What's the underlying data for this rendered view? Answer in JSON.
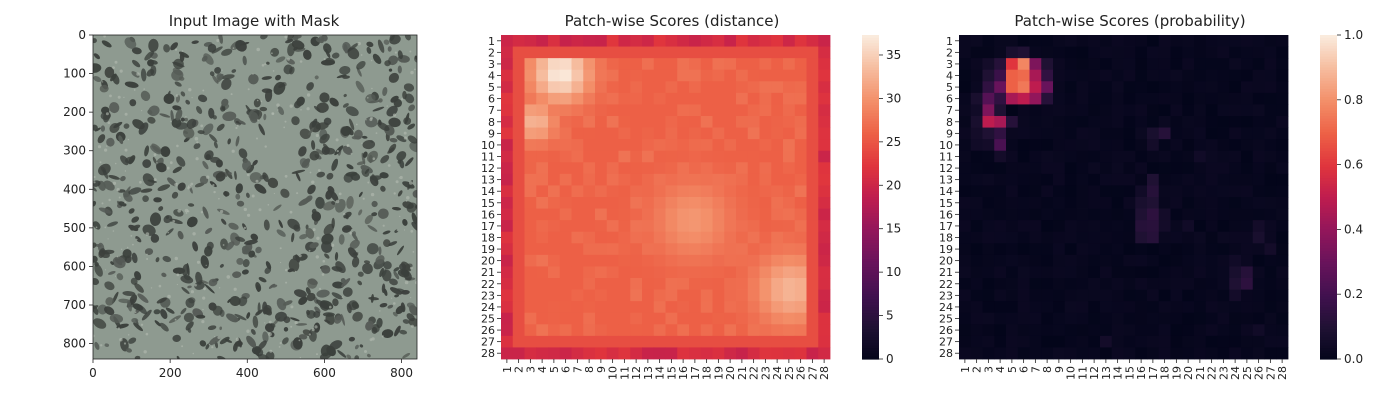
{
  "colors": {
    "background": "#ffffff",
    "texture_light": "#8e9a90",
    "texture_dark": "#3b403c",
    "rocket_low": "#03051a",
    "rocket_high": "#faebdd"
  },
  "chart_data": [
    {
      "type": "image",
      "title": "Input Image with Mask",
      "xlabel": "",
      "ylabel": "",
      "xlim": [
        0,
        840
      ],
      "ylim": [
        840,
        0
      ],
      "xticks": [
        0,
        200,
        400,
        600,
        800
      ],
      "yticks": [
        0,
        100,
        200,
        300,
        400,
        500,
        600,
        700,
        800
      ],
      "texture": "grey-green granite speckle with dark blotches"
    },
    {
      "type": "heatmap",
      "title": "Patch-wise Scores (distance)",
      "rows": 28,
      "cols": 28,
      "row_labels": [
        "1",
        "2",
        "3",
        "4",
        "5",
        "6",
        "7",
        "8",
        "9",
        "10",
        "11",
        "12",
        "13",
        "14",
        "15",
        "16",
        "17",
        "18",
        "19",
        "20",
        "21",
        "22",
        "23",
        "24",
        "25",
        "26",
        "27",
        "28"
      ],
      "col_labels": [
        "1",
        "2",
        "3",
        "4",
        "5",
        "6",
        "7",
        "8",
        "9",
        "10",
        "11",
        "12",
        "13",
        "14",
        "15",
        "16",
        "17",
        "18",
        "19",
        "20",
        "21",
        "22",
        "23",
        "24",
        "25",
        "26",
        "27",
        "28"
      ],
      "colormap": "rocket",
      "vmin": 0,
      "vmax": 37.3,
      "colorbar_ticks": [
        0,
        5,
        10,
        15,
        20,
        25,
        30,
        35
      ],
      "baseline": 26,
      "edge_value": 21,
      "hotspots": [
        {
          "row": 3.8,
          "col": 5.6,
          "peak": 37.3,
          "spread": 1.8
        },
        {
          "row": 8,
          "col": 3.4,
          "peak": 33,
          "spread": 1.3
        },
        {
          "row": 16.5,
          "col": 16.8,
          "peak": 30.5,
          "spread": 2.4
        },
        {
          "row": 22.5,
          "col": 25.2,
          "peak": 33,
          "spread": 2.2
        }
      ]
    },
    {
      "type": "heatmap",
      "title": "Patch-wise Scores (probability)",
      "rows": 28,
      "cols": 28,
      "row_labels": [
        "1",
        "2",
        "3",
        "4",
        "5",
        "6",
        "7",
        "8",
        "9",
        "10",
        "11",
        "12",
        "13",
        "14",
        "15",
        "16",
        "17",
        "18",
        "19",
        "20",
        "21",
        "22",
        "23",
        "24",
        "25",
        "26",
        "27",
        "28"
      ],
      "col_labels": [
        "1",
        "2",
        "3",
        "4",
        "5",
        "6",
        "7",
        "8",
        "9",
        "10",
        "11",
        "12",
        "13",
        "14",
        "15",
        "16",
        "17",
        "18",
        "19",
        "20",
        "21",
        "22",
        "23",
        "24",
        "25",
        "26",
        "27",
        "28"
      ],
      "colormap": "rocket",
      "vmin": 0,
      "vmax": 1,
      "colorbar_ticks": [
        0.0,
        0.2,
        0.4,
        0.6,
        0.8,
        1.0
      ],
      "colorbar_tick_labels": [
        "0.0",
        "0.2",
        "0.4",
        "0.6",
        "0.8",
        "1.0"
      ],
      "cells": [
        {
          "row": 2,
          "col": 5,
          "value": 0.08
        },
        {
          "row": 2,
          "col": 6,
          "value": 0.1
        },
        {
          "row": 3,
          "col": 3,
          "value": 0.06
        },
        {
          "row": 3,
          "col": 4,
          "value": 0.12
        },
        {
          "row": 3,
          "col": 5,
          "value": 0.6
        },
        {
          "row": 3,
          "col": 6,
          "value": 0.78
        },
        {
          "row": 3,
          "col": 7,
          "value": 0.35
        },
        {
          "row": 3,
          "col": 8,
          "value": 0.1
        },
        {
          "row": 4,
          "col": 3,
          "value": 0.1
        },
        {
          "row": 4,
          "col": 4,
          "value": 0.18
        },
        {
          "row": 4,
          "col": 5,
          "value": 0.7
        },
        {
          "row": 4,
          "col": 6,
          "value": 0.72
        },
        {
          "row": 4,
          "col": 7,
          "value": 0.45
        },
        {
          "row": 4,
          "col": 8,
          "value": 0.15
        },
        {
          "row": 5,
          "col": 3,
          "value": 0.15
        },
        {
          "row": 5,
          "col": 4,
          "value": 0.3
        },
        {
          "row": 5,
          "col": 5,
          "value": 0.7
        },
        {
          "row": 5,
          "col": 6,
          "value": 0.75
        },
        {
          "row": 5,
          "col": 7,
          "value": 0.5
        },
        {
          "row": 5,
          "col": 8,
          "value": 0.3
        },
        {
          "row": 6,
          "col": 2,
          "value": 0.08
        },
        {
          "row": 6,
          "col": 3,
          "value": 0.25
        },
        {
          "row": 6,
          "col": 4,
          "value": 0.15
        },
        {
          "row": 6,
          "col": 5,
          "value": 0.45
        },
        {
          "row": 6,
          "col": 6,
          "value": 0.5
        },
        {
          "row": 6,
          "col": 7,
          "value": 0.4
        },
        {
          "row": 6,
          "col": 8,
          "value": 0.12
        },
        {
          "row": 7,
          "col": 2,
          "value": 0.05
        },
        {
          "row": 7,
          "col": 3,
          "value": 0.35
        },
        {
          "row": 7,
          "col": 4,
          "value": 0.1
        },
        {
          "row": 8,
          "col": 2,
          "value": 0.08
        },
        {
          "row": 8,
          "col": 3,
          "value": 0.5
        },
        {
          "row": 8,
          "col": 4,
          "value": 0.45
        },
        {
          "row": 8,
          "col": 5,
          "value": 0.12
        },
        {
          "row": 9,
          "col": 2,
          "value": 0.06
        },
        {
          "row": 9,
          "col": 3,
          "value": 0.1
        },
        {
          "row": 9,
          "col": 4,
          "value": 0.15
        },
        {
          "row": 10,
          "col": 2,
          "value": 0.05
        },
        {
          "row": 10,
          "col": 3,
          "value": 0.06
        },
        {
          "row": 10,
          "col": 4,
          "value": 0.22
        },
        {
          "row": 11,
          "col": 4,
          "value": 0.06
        },
        {
          "row": 9,
          "col": 17,
          "value": 0.08
        },
        {
          "row": 9,
          "col": 18,
          "value": 0.12
        },
        {
          "row": 10,
          "col": 17,
          "value": 0.06
        },
        {
          "row": 11,
          "col": 21,
          "value": 0.05
        },
        {
          "row": 13,
          "col": 17,
          "value": 0.1
        },
        {
          "row": 14,
          "col": 17,
          "value": 0.12
        },
        {
          "row": 14,
          "col": 16,
          "value": 0.05
        },
        {
          "row": 15,
          "col": 16,
          "value": 0.08
        },
        {
          "row": 15,
          "col": 17,
          "value": 0.1
        },
        {
          "row": 16,
          "col": 16,
          "value": 0.1
        },
        {
          "row": 16,
          "col": 17,
          "value": 0.14
        },
        {
          "row": 16,
          "col": 18,
          "value": 0.06
        },
        {
          "row": 17,
          "col": 16,
          "value": 0.12
        },
        {
          "row": 17,
          "col": 17,
          "value": 0.13
        },
        {
          "row": 17,
          "col": 18,
          "value": 0.06
        },
        {
          "row": 18,
          "col": 16,
          "value": 0.1
        },
        {
          "row": 18,
          "col": 17,
          "value": 0.12
        },
        {
          "row": 17,
          "col": 20,
          "value": 0.05
        },
        {
          "row": 17,
          "col": 26,
          "value": 0.06
        },
        {
          "row": 18,
          "col": 26,
          "value": 0.08
        },
        {
          "row": 19,
          "col": 27,
          "value": 0.06
        },
        {
          "row": 21,
          "col": 24,
          "value": 0.08
        },
        {
          "row": 21,
          "col": 25,
          "value": 0.12
        },
        {
          "row": 22,
          "col": 24,
          "value": 0.1
        },
        {
          "row": 22,
          "col": 25,
          "value": 0.14
        },
        {
          "row": 23,
          "col": 24,
          "value": 0.06
        },
        {
          "row": 20,
          "col": 24,
          "value": 0.05
        },
        {
          "row": 26,
          "col": 26,
          "value": 0.05
        },
        {
          "row": 27,
          "col": 13,
          "value": 0.06
        }
      ]
    }
  ]
}
